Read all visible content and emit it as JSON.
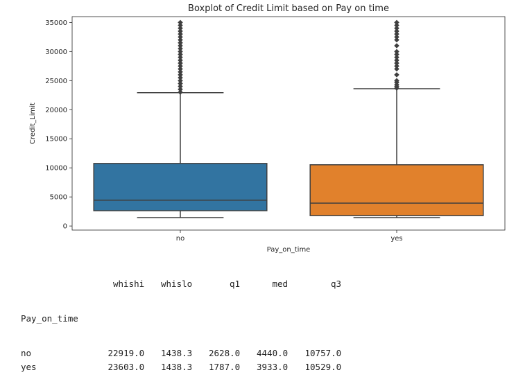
{
  "chart_data": {
    "type": "boxplot",
    "title": "Boxplot of Credit Limit based on Pay on time",
    "xlabel": "Pay_on_time",
    "ylabel": "Credit_Limit",
    "categories": [
      "no",
      "yes"
    ],
    "ylim": [
      -700,
      36000
    ],
    "yticks": [
      0,
      5000,
      10000,
      15000,
      20000,
      25000,
      30000,
      35000
    ],
    "colors": [
      "#3274a1",
      "#e1812c"
    ],
    "boxes": [
      {
        "category": "no",
        "whislo": 1438.3,
        "q1": 2628.0,
        "med": 4440.0,
        "q3": 10757.0,
        "whishi": 22919.0,
        "fliers": [
          23000,
          23500,
          24000,
          24500,
          25000,
          25500,
          26000,
          26500,
          27000,
          27500,
          28000,
          28500,
          29000,
          29500,
          30000,
          30500,
          31000,
          31500,
          32000,
          32500,
          33000,
          33500,
          34000,
          34500,
          35000
        ]
      },
      {
        "category": "yes",
        "whislo": 1438.3,
        "q1": 1787.0,
        "med": 3933.0,
        "q3": 10529.0,
        "whishi": 23603.0,
        "fliers": [
          23700,
          24000,
          24300,
          24700,
          25000,
          26000,
          27000,
          27500,
          28000,
          28500,
          29000,
          29500,
          30000,
          31000,
          32000,
          32500,
          33000,
          33500,
          34000,
          34500,
          35000
        ]
      }
    ],
    "grid": false,
    "legend": "none"
  },
  "table": {
    "index_name": "Pay_on_time",
    "columns": [
      "whishi",
      "whislo",
      "q1",
      "med",
      "q3"
    ],
    "rows": [
      {
        "index": "no",
        "values": [
          "22919.0",
          "1438.3",
          "2628.0",
          "4440.0",
          "10757.0"
        ]
      },
      {
        "index": "yes",
        "values": [
          "23603.0",
          "1438.3",
          "1787.0",
          "3933.0",
          "10529.0"
        ]
      }
    ]
  }
}
